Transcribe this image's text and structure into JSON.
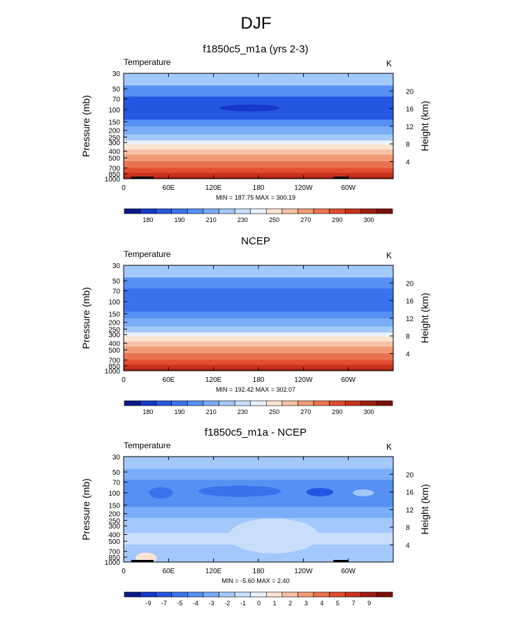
{
  "title": "DJF",
  "palettes": {
    "abs": [
      "#0b1a8c",
      "#1738c8",
      "#2556e0",
      "#3a72ec",
      "#5590f2",
      "#7aacf7",
      "#a3c8fb",
      "#c8defb",
      "#eaf0f8",
      "#fbe3d4",
      "#f6c0a4",
      "#f09a76",
      "#ea734f",
      "#e04d2f",
      "#c8321d",
      "#9e1f12",
      "#7a1208"
    ],
    "diff": [
      "#0b1a8c",
      "#1738c8",
      "#2556e0",
      "#3a72ec",
      "#5590f2",
      "#7aacf7",
      "#a3c8fb",
      "#c8defb",
      "#eaf0f8",
      "#fbe3d4",
      "#f6c0a4",
      "#f09a76",
      "#ea734f",
      "#e04d2f",
      "#c8321d",
      "#9e1f12",
      "#7a1208"
    ]
  },
  "chart_data": [
    {
      "id": "model",
      "type": "heatmap",
      "title": "f1850c5_m1a (yrs 2-3)",
      "left_label": "Temperature",
      "right_label": "K",
      "xlabel": "",
      "ylabel": "Pressure (mb)",
      "y2label": "Height (km)",
      "x_ticks": [
        "0",
        "60E",
        "120E",
        "180",
        "120W",
        "60W"
      ],
      "x_tick_values": [
        0,
        60,
        120,
        180,
        240,
        300
      ],
      "xlim": [
        0,
        360
      ],
      "y_ticks": [
        "30",
        "50",
        "70",
        "100",
        "150",
        "200",
        "250",
        "300",
        "400",
        "500",
        "700",
        "850",
        "1000"
      ],
      "y_tick_values": [
        30,
        50,
        70,
        100,
        150,
        200,
        250,
        300,
        400,
        500,
        700,
        850,
        1000
      ],
      "ylim": [
        1000,
        30
      ],
      "height_ticks": [
        "20",
        "16",
        "12",
        "8",
        "4"
      ],
      "height_tick_values": [
        20,
        16,
        12,
        8,
        4
      ],
      "min_max": "MIN = 187.75  MAX = 300.19",
      "colorbar_labels": [
        "180",
        "190",
        "210",
        "230",
        "250",
        "270",
        "290",
        "300"
      ],
      "bands": [
        {
          "p": [
            30,
            45
          ],
          "level": 6
        },
        {
          "p": [
            45,
            65
          ],
          "level": 4
        },
        {
          "p": [
            65,
            140
          ],
          "level": 2
        },
        {
          "p": [
            140,
            175
          ],
          "level": 4
        },
        {
          "p": [
            175,
            230
          ],
          "level": 5
        },
        {
          "p": [
            230,
            280
          ],
          "level": 6
        },
        {
          "p": [
            280,
            320
          ],
          "level": 8
        },
        {
          "p": [
            320,
            380
          ],
          "level": 9
        },
        {
          "p": [
            380,
            450
          ],
          "level": 10
        },
        {
          "p": [
            450,
            560
          ],
          "level": 11
        },
        {
          "p": [
            560,
            700
          ],
          "level": 12
        },
        {
          "p": [
            700,
            820
          ],
          "level": 13
        },
        {
          "p": [
            820,
            940
          ],
          "level": 14
        },
        {
          "p": [
            940,
            1000
          ],
          "level": 15
        }
      ],
      "blobs": [
        {
          "lon": 168,
          "p": 95,
          "rx": 40,
          "ry": 5,
          "level": 1
        }
      ],
      "topography": [
        [
          10,
          40
        ],
        [
          280,
          300
        ]
      ]
    },
    {
      "id": "obs",
      "type": "heatmap",
      "title": "NCEP",
      "left_label": "Temperature",
      "right_label": "K",
      "xlabel": "",
      "ylabel": "Pressure (mb)",
      "y2label": "Height (km)",
      "x_ticks": [
        "0",
        "60E",
        "120E",
        "180",
        "120W",
        "60W"
      ],
      "x_tick_values": [
        0,
        60,
        120,
        180,
        240,
        300
      ],
      "xlim": [
        0,
        360
      ],
      "y_ticks": [
        "30",
        "50",
        "70",
        "100",
        "150",
        "200",
        "250",
        "300",
        "400",
        "500",
        "700",
        "850",
        "1000"
      ],
      "y_tick_values": [
        30,
        50,
        70,
        100,
        150,
        200,
        250,
        300,
        400,
        500,
        700,
        850,
        1000
      ],
      "ylim": [
        1000,
        30
      ],
      "height_ticks": [
        "20",
        "16",
        "12",
        "8",
        "4"
      ],
      "height_tick_values": [
        20,
        16,
        12,
        8,
        4
      ],
      "min_max": "MIN = 192.42  MAX = 302.07",
      "colorbar_labels": [
        "180",
        "190",
        "210",
        "230",
        "250",
        "270",
        "290",
        "300"
      ],
      "bands": [
        {
          "p": [
            30,
            45
          ],
          "level": 6
        },
        {
          "p": [
            45,
            65
          ],
          "level": 4
        },
        {
          "p": [
            65,
            140
          ],
          "level": 3
        },
        {
          "p": [
            140,
            175
          ],
          "level": 4
        },
        {
          "p": [
            175,
            230
          ],
          "level": 5
        },
        {
          "p": [
            230,
            280
          ],
          "level": 6
        },
        {
          "p": [
            280,
            320
          ],
          "level": 8
        },
        {
          "p": [
            320,
            380
          ],
          "level": 9
        },
        {
          "p": [
            380,
            450
          ],
          "level": 10
        },
        {
          "p": [
            450,
            560
          ],
          "level": 11
        },
        {
          "p": [
            560,
            700
          ],
          "level": 12
        },
        {
          "p": [
            700,
            820
          ],
          "level": 13
        },
        {
          "p": [
            820,
            940
          ],
          "level": 14
        },
        {
          "p": [
            940,
            1000
          ],
          "level": 15
        }
      ],
      "blobs": [],
      "topography": []
    },
    {
      "id": "diff",
      "type": "heatmap",
      "title": "f1850c5_m1a - NCEP",
      "left_label": "Temperature",
      "right_label": "K",
      "xlabel": "",
      "ylabel": "Pressure (mb)",
      "y2label": "Height (km)",
      "x_ticks": [
        "0",
        "60E",
        "120E",
        "180",
        "120W",
        "60W"
      ],
      "x_tick_values": [
        0,
        60,
        120,
        180,
        240,
        300
      ],
      "xlim": [
        0,
        360
      ],
      "y_ticks": [
        "30",
        "50",
        "70",
        "100",
        "150",
        "200",
        "250",
        "300",
        "400",
        "500",
        "700",
        "850",
        "1000"
      ],
      "y_tick_values": [
        30,
        50,
        70,
        100,
        150,
        200,
        250,
        300,
        400,
        500,
        700,
        850,
        1000
      ],
      "ylim": [
        1000,
        30
      ],
      "height_ticks": [
        "20",
        "16",
        "12",
        "8",
        "4"
      ],
      "height_tick_values": [
        20,
        16,
        12,
        8,
        4
      ],
      "min_max": "MIN =  -5.60  MAX =  2.40",
      "colorbar_labels": [
        "-9",
        "-7",
        "-5",
        "-4",
        "-3",
        "-2",
        "-1",
        "0",
        "1",
        "2",
        "3",
        "4",
        "5",
        "7",
        "9"
      ],
      "bands": [
        {
          "p": [
            30,
            45
          ],
          "level": 6
        },
        {
          "p": [
            45,
            65
          ],
          "level": 5
        },
        {
          "p": [
            65,
            160
          ],
          "level": 4
        },
        {
          "p": [
            160,
            230
          ],
          "level": 5
        },
        {
          "p": [
            230,
            380
          ],
          "level": 6
        },
        {
          "p": [
            380,
            560
          ],
          "level": 7
        },
        {
          "p": [
            560,
            1000
          ],
          "level": 6
        }
      ],
      "blobs": [
        {
          "lon": 155,
          "p": 95,
          "rx": 55,
          "ry": 8,
          "level": 3
        },
        {
          "lon": 262,
          "p": 98,
          "rx": 18,
          "ry": 6,
          "level": 2
        },
        {
          "lon": 50,
          "p": 100,
          "rx": 16,
          "ry": 8,
          "level": 3
        },
        {
          "lon": 200,
          "p": 420,
          "rx": 60,
          "ry": 25,
          "level": 7
        },
        {
          "lon": 320,
          "p": 100,
          "rx": 14,
          "ry": 5,
          "level": 6
        },
        {
          "lon": 30,
          "p": 880,
          "rx": 14,
          "ry": 8,
          "level": 9
        }
      ],
      "topography": [
        [
          10,
          40
        ],
        [
          280,
          300
        ]
      ]
    }
  ]
}
